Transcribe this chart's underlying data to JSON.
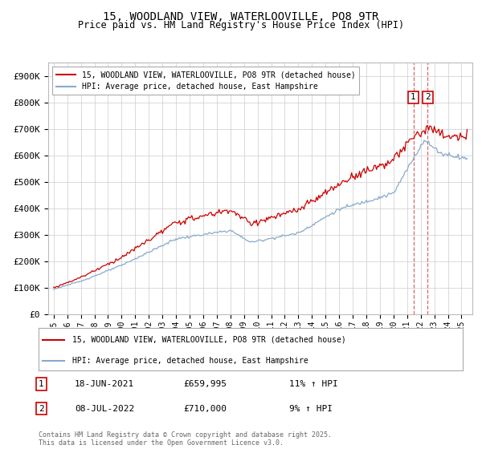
{
  "title": "15, WOODLAND VIEW, WATERLOOVILLE, PO8 9TR",
  "subtitle": "Price paid vs. HM Land Registry's House Price Index (HPI)",
  "ylabel_ticks": [
    "£0",
    "£100K",
    "£200K",
    "£300K",
    "£400K",
    "£500K",
    "£600K",
    "£700K",
    "£800K",
    "£900K"
  ],
  "ytick_values": [
    0,
    100000,
    200000,
    300000,
    400000,
    500000,
    600000,
    700000,
    800000,
    900000
  ],
  "ylim": [
    0,
    950000
  ],
  "line1_color": "#cc0000",
  "line2_color": "#88aacc",
  "sale1_x": 2021.46,
  "sale2_x": 2022.52,
  "sale1_date": "18-JUN-2021",
  "sale1_price": "£659,995",
  "sale1_hpi": "11% ↑ HPI",
  "sale2_date": "08-JUL-2022",
  "sale2_price": "£710,000",
  "sale2_hpi": "9% ↑ HPI",
  "legend1_label": "15, WOODLAND VIEW, WATERLOOVILLE, PO8 9TR (detached house)",
  "legend2_label": "HPI: Average price, detached house, East Hampshire",
  "footer": "Contains HM Land Registry data © Crown copyright and database right 2025.\nThis data is licensed under the Open Government Licence v3.0.",
  "background_color": "#ffffff"
}
